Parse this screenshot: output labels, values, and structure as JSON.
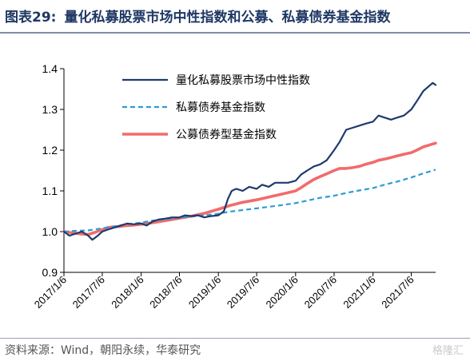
{
  "header": {
    "figure_label": "图表29:",
    "figure_title": "量化私募股票市场中性指数和公募、私募债券基金指数"
  },
  "footer": {
    "source": "资料来源：Wind，朝阳永续，华泰研究",
    "watermark": "格隆汇"
  },
  "chart_data": {
    "type": "line",
    "ylim": [
      0.9,
      1.4
    ],
    "yticks": [
      "0.9",
      "1.0",
      "1.1",
      "1.2",
      "1.3",
      "1.4"
    ],
    "x_start": "2017/1/6",
    "x_end": "2021/10/29",
    "xticks": [
      "2017/1/6",
      "2017/7/6",
      "2018/1/6",
      "2018/7/6",
      "2019/1/6",
      "2019/7/6",
      "2020/1/6",
      "2020/7/6",
      "2021/1/6",
      "2021/7/6"
    ],
    "legend_position": "top-left",
    "grid": false,
    "series": [
      {
        "name": "量化私募股票市场中性指数",
        "color": "#1f3a6e",
        "style": "solid",
        "points": [
          [
            "2017/1/6",
            1.0
          ],
          [
            "2017/2/1",
            0.99
          ],
          [
            "2017/3/1",
            0.995
          ],
          [
            "2017/4/1",
            1.0
          ],
          [
            "2017/5/1",
            0.99
          ],
          [
            "2017/5/20",
            0.98
          ],
          [
            "2017/6/15",
            0.99
          ],
          [
            "2017/7/6",
            1.0
          ],
          [
            "2017/8/1",
            1.005
          ],
          [
            "2017/9/1",
            1.01
          ],
          [
            "2017/10/1",
            1.015
          ],
          [
            "2017/11/1",
            1.02
          ],
          [
            "2017/12/1",
            1.018
          ],
          [
            "2018/1/6",
            1.02
          ],
          [
            "2018/2/1",
            1.015
          ],
          [
            "2018/3/1",
            1.025
          ],
          [
            "2018/4/1",
            1.03
          ],
          [
            "2018/5/1",
            1.032
          ],
          [
            "2018/6/1",
            1.035
          ],
          [
            "2018/7/6",
            1.035
          ],
          [
            "2018/8/1",
            1.04
          ],
          [
            "2018/9/1",
            1.038
          ],
          [
            "2018/10/1",
            1.04
          ],
          [
            "2018/11/1",
            1.035
          ],
          [
            "2018/12/1",
            1.038
          ],
          [
            "2019/1/6",
            1.04
          ],
          [
            "2019/2/1",
            1.05
          ],
          [
            "2019/2/20",
            1.08
          ],
          [
            "2019/3/10",
            1.1
          ],
          [
            "2019/4/1",
            1.105
          ],
          [
            "2019/5/1",
            1.1
          ],
          [
            "2019/6/1",
            1.11
          ],
          [
            "2019/7/6",
            1.105
          ],
          [
            "2019/8/1",
            1.115
          ],
          [
            "2019/9/1",
            1.11
          ],
          [
            "2019/10/1",
            1.12
          ],
          [
            "2019/11/1",
            1.12
          ],
          [
            "2019/12/1",
            1.12
          ],
          [
            "2020/1/6",
            1.125
          ],
          [
            "2020/2/1",
            1.14
          ],
          [
            "2020/3/1",
            1.15
          ],
          [
            "2020/4/1",
            1.16
          ],
          [
            "2020/5/1",
            1.165
          ],
          [
            "2020/6/1",
            1.175
          ],
          [
            "2020/7/6",
            1.2
          ],
          [
            "2020/8/1",
            1.22
          ],
          [
            "2020/9/1",
            1.25
          ],
          [
            "2020/10/1",
            1.255
          ],
          [
            "2020/11/1",
            1.26
          ],
          [
            "2020/12/1",
            1.265
          ],
          [
            "2021/1/6",
            1.27
          ],
          [
            "2021/2/1",
            1.285
          ],
          [
            "2021/3/1",
            1.28
          ],
          [
            "2021/4/1",
            1.275
          ],
          [
            "2021/5/1",
            1.28
          ],
          [
            "2021/6/1",
            1.285
          ],
          [
            "2021/7/6",
            1.3
          ],
          [
            "2021/8/1",
            1.32
          ],
          [
            "2021/9/1",
            1.345
          ],
          [
            "2021/10/15",
            1.365
          ],
          [
            "2021/10/29",
            1.36
          ]
        ]
      },
      {
        "name": "私募债券基金指数",
        "color": "#2e9bd6",
        "style": "dashed",
        "points": [
          [
            "2017/1/6",
            1.0
          ],
          [
            "2017/3/1",
            1.002
          ],
          [
            "2017/5/1",
            1.003
          ],
          [
            "2017/7/6",
            1.008
          ],
          [
            "2017/9/1",
            1.013
          ],
          [
            "2017/11/1",
            1.018
          ],
          [
            "2018/1/6",
            1.022
          ],
          [
            "2018/3/1",
            1.027
          ],
          [
            "2018/5/1",
            1.03
          ],
          [
            "2018/7/6",
            1.034
          ],
          [
            "2018/9/1",
            1.037
          ],
          [
            "2018/11/1",
            1.04
          ],
          [
            "2019/1/6",
            1.044
          ],
          [
            "2019/3/1",
            1.049
          ],
          [
            "2019/5/1",
            1.053
          ],
          [
            "2019/7/6",
            1.057
          ],
          [
            "2019/9/1",
            1.061
          ],
          [
            "2019/11/1",
            1.065
          ],
          [
            "2020/1/6",
            1.07
          ],
          [
            "2020/3/1",
            1.076
          ],
          [
            "2020/5/1",
            1.083
          ],
          [
            "2020/7/6",
            1.088
          ],
          [
            "2020/9/1",
            1.095
          ],
          [
            "2020/11/1",
            1.101
          ],
          [
            "2021/1/6",
            1.107
          ],
          [
            "2021/3/1",
            1.115
          ],
          [
            "2021/5/1",
            1.123
          ],
          [
            "2021/7/6",
            1.133
          ],
          [
            "2021/9/1",
            1.143
          ],
          [
            "2021/10/29",
            1.152
          ]
        ]
      },
      {
        "name": "公募债券型基金指数",
        "color": "#f26b6b",
        "style": "solid",
        "points": [
          [
            "2017/1/6",
            1.0
          ],
          [
            "2017/2/1",
            0.998
          ],
          [
            "2017/3/1",
            0.996
          ],
          [
            "2017/4/1",
            0.994
          ],
          [
            "2017/5/1",
            0.993
          ],
          [
            "2017/6/1",
            0.998
          ],
          [
            "2017/7/6",
            1.005
          ],
          [
            "2017/8/1",
            1.01
          ],
          [
            "2017/9/1",
            1.012
          ],
          [
            "2017/10/1",
            1.013
          ],
          [
            "2017/11/1",
            1.015
          ],
          [
            "2017/12/1",
            1.016
          ],
          [
            "2018/1/6",
            1.018
          ],
          [
            "2018/3/1",
            1.022
          ],
          [
            "2018/5/1",
            1.027
          ],
          [
            "2018/7/6",
            1.033
          ],
          [
            "2018/9/1",
            1.038
          ],
          [
            "2018/11/1",
            1.045
          ],
          [
            "2019/1/6",
            1.055
          ],
          [
            "2019/3/1",
            1.064
          ],
          [
            "2019/5/1",
            1.072
          ],
          [
            "2019/7/6",
            1.078
          ],
          [
            "2019/9/1",
            1.085
          ],
          [
            "2019/11/1",
            1.092
          ],
          [
            "2020/1/6",
            1.1
          ],
          [
            "2020/2/1",
            1.108
          ],
          [
            "2020/3/1",
            1.118
          ],
          [
            "2020/4/1",
            1.128
          ],
          [
            "2020/5/1",
            1.135
          ],
          [
            "2020/6/1",
            1.142
          ],
          [
            "2020/7/6",
            1.15
          ],
          [
            "2020/8/1",
            1.155
          ],
          [
            "2020/9/1",
            1.155
          ],
          [
            "2020/10/1",
            1.157
          ],
          [
            "2020/11/1",
            1.16
          ],
          [
            "2020/12/1",
            1.165
          ],
          [
            "2021/1/6",
            1.17
          ],
          [
            "2021/2/1",
            1.175
          ],
          [
            "2021/3/1",
            1.178
          ],
          [
            "2021/4/1",
            1.182
          ],
          [
            "2021/5/1",
            1.186
          ],
          [
            "2021/6/1",
            1.19
          ],
          [
            "2021/7/6",
            1.194
          ],
          [
            "2021/8/1",
            1.2
          ],
          [
            "2021/9/1",
            1.208
          ],
          [
            "2021/10/15",
            1.215
          ],
          [
            "2021/10/29",
            1.217
          ]
        ]
      }
    ]
  }
}
